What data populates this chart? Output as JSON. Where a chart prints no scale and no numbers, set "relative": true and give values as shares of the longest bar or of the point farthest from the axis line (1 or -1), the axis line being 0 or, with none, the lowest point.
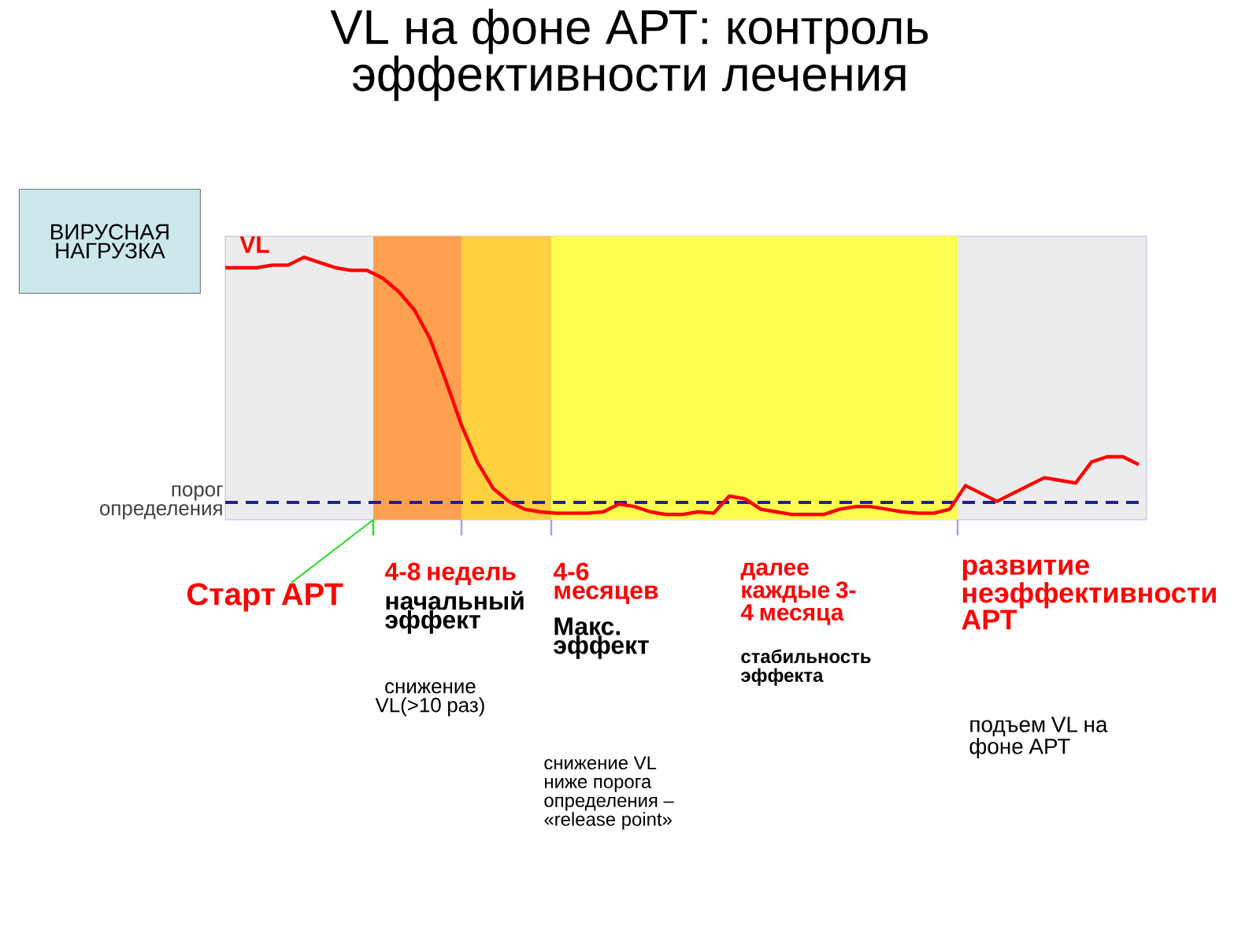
{
  "chart_data": {
    "type": "line",
    "relative": true,
    "title": "VL на фоне АРТ: контроль эффективности лечения",
    "ylabel": "ВИРУСНАЯ НАГРУЗКА",
    "categories": [
      null,
      null,
      null,
      null,
      null,
      null,
      null,
      null,
      null,
      null,
      null,
      null,
      null,
      null,
      null,
      null,
      null,
      null,
      null,
      null,
      null,
      null,
      null,
      null,
      null,
      null,
      null,
      null,
      null,
      null,
      null,
      null,
      null,
      null,
      null,
      null,
      null,
      null,
      null,
      null,
      null,
      null,
      null,
      null,
      null,
      null,
      null,
      null,
      null,
      null,
      null,
      null,
      null,
      null,
      null,
      null,
      null,
      null,
      null
    ],
    "series": [
      {
        "name": "VL",
        "color": "#ff0000",
        "values": [
          0.96,
          0.96,
          0.96,
          0.97,
          0.97,
          1.0,
          0.98,
          0.96,
          0.95,
          0.95,
          0.92,
          0.87,
          0.8,
          0.69,
          0.53,
          0.36,
          0.22,
          0.12,
          0.07,
          0.04,
          0.03,
          0.025,
          0.025,
          0.025,
          0.03,
          0.06,
          0.05,
          0.03,
          0.02,
          0.02,
          0.03,
          0.025,
          0.09,
          0.08,
          0.04,
          0.03,
          0.02,
          0.02,
          0.02,
          0.04,
          0.05,
          0.05,
          0.04,
          0.03,
          0.025,
          0.025,
          0.04,
          0.13,
          0.1,
          0.07,
          0.1,
          0.13,
          0.16,
          0.15,
          0.14,
          0.22,
          0.24,
          0.24,
          0.21
        ]
      }
    ],
    "ref_lines": [
      {
        "axis": "y",
        "value": 0.066,
        "label": "порог определения",
        "color": "#202090",
        "line_style": "dashed"
      }
    ],
    "annotations": [
      "Старт АРТ",
      "4-8 недель",
      "начальный эффект",
      "снижение VL(>10 раз)",
      "4-6 месяцев",
      "Макс. эффект",
      "снижение VL ниже порога определения – «release point»",
      "далее каждые 3-4 месяца",
      "стабильность эффекта",
      "развитие неэффективности АРТ",
      "подъем VL на фоне АРТ"
    ]
  }
}
